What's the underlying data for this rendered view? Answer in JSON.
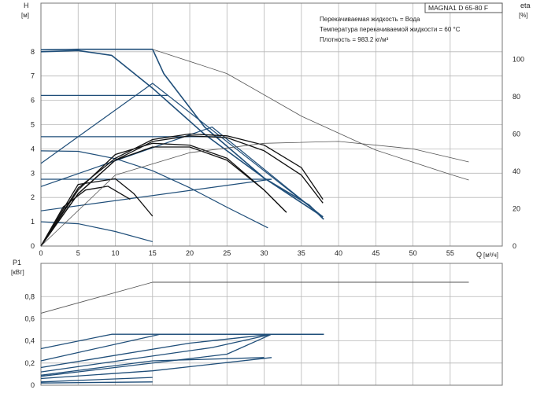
{
  "chart_data": [
    {
      "type": "line",
      "panel": "head",
      "title": "MAGNA1 D 65-80 F",
      "ylabel": "H",
      "yunit": "[м]",
      "xlabel": "Q",
      "xunit": "[м³/ч]",
      "y2label": "eta",
      "y2unit": "[%]",
      "xlim": [
        0,
        62
      ],
      "ylim": [
        0,
        10
      ],
      "y2lim": [
        0,
        130
      ],
      "x_ticks": [
        0,
        5,
        10,
        15,
        20,
        25,
        30,
        35,
        40,
        45,
        50,
        55
      ],
      "y_ticks": [
        0,
        1,
        2,
        3,
        4,
        5,
        6,
        7,
        8
      ],
      "y2_ticks": [
        0,
        20,
        40,
        60,
        80,
        100
      ],
      "grid": true,
      "info_lines": [
        "Перекачиваемая жидкость = Вода",
        "Температура перекачиваемой жидкости = 60 °C",
        "Плотность = 983.2 кг/м³"
      ],
      "colors": {
        "curve": "#1f4e79",
        "efficiency": "#111111",
        "twin": "#555555",
        "grid": "#b8b8b8"
      },
      "series": [
        {
          "role": "max-speed",
          "x": [
            0,
            5,
            9.5,
            15,
            22,
            30,
            36,
            38
          ],
          "y": [
            8.0,
            8.05,
            7.85,
            6.5,
            4.6,
            2.8,
            1.7,
            1.1
          ]
        },
        {
          "role": "max-speed",
          "x": [
            0,
            5,
            10,
            15,
            16.5,
            22,
            30,
            37.9
          ],
          "y": [
            8.08,
            8.1,
            8.1,
            8.1,
            7.1,
            4.9,
            2.8,
            1.2
          ]
        },
        {
          "role": "proportional-pressure",
          "x": [
            0,
            15,
            37.9
          ],
          "y": [
            3.4,
            6.7,
            1.2
          ]
        },
        {
          "role": "proportional-pressure",
          "x": [
            0,
            23,
            37.9
          ],
          "y": [
            2.45,
            4.9,
            1.2
          ]
        },
        {
          "role": "constant-pressure",
          "x": [
            0,
            17
          ],
          "y": [
            6.2,
            6.2
          ]
        },
        {
          "role": "constant-pressure",
          "x": [
            0,
            24
          ],
          "y": [
            4.5,
            4.5
          ]
        },
        {
          "role": "constant-pressure",
          "x": [
            0,
            31
          ],
          "y": [
            2.75,
            2.75
          ]
        },
        {
          "role": "constant-curve",
          "x": [
            0,
            5,
            10,
            15,
            20,
            25,
            30.5
          ],
          "y": [
            3.92,
            3.9,
            3.6,
            3.1,
            2.4,
            1.6,
            0.75
          ]
        },
        {
          "role": "constant-curve",
          "x": [
            0,
            5,
            10,
            15
          ],
          "y": [
            1.0,
            0.92,
            0.6,
            0.18
          ]
        },
        {
          "role": "proportional-pressure",
          "x": [
            0,
            31
          ],
          "y": [
            1.45,
            2.75
          ]
        },
        {
          "role": "twin-max-speed",
          "x": [
            15,
            25,
            35,
            45,
            55,
            57.5
          ],
          "y": [
            8.1,
            7.1,
            5.35,
            3.95,
            2.95,
            2.72
          ]
        }
      ],
      "efficiency_series": [
        {
          "x": [
            0,
            5,
            10,
            15,
            20,
            25,
            30,
            35,
            37.9
          ],
          "y": [
            0,
            31,
            47,
            57,
            60,
            59,
            54,
            42,
            25
          ]
        },
        {
          "x": [
            0,
            5,
            10,
            15,
            20,
            25,
            30,
            35,
            37.9
          ],
          "y": [
            0,
            28,
            46,
            56,
            59,
            58,
            51,
            38,
            23
          ]
        },
        {
          "x": [
            0,
            5,
            10,
            15,
            20,
            25,
            30,
            33
          ],
          "y": [
            0,
            30,
            49,
            55,
            54,
            47,
            30,
            18
          ]
        },
        {
          "x": [
            0,
            5,
            10,
            15,
            20,
            25,
            30,
            33
          ],
          "y": [
            0,
            28,
            46,
            53,
            53,
            46,
            30,
            18
          ]
        },
        {
          "x": [
            0,
            5,
            10,
            12.5,
            15
          ],
          "y": [
            0,
            33,
            36,
            28,
            16
          ]
        },
        {
          "x": [
            0,
            3,
            6,
            9,
            12
          ],
          "y": [
            0,
            21,
            30,
            32,
            25
          ]
        },
        {
          "x": [
            0,
            10,
            20,
            30,
            40,
            50,
            57.5
          ],
          "y": [
            0,
            38,
            50,
            55,
            56,
            52,
            45
          ]
        }
      ]
    },
    {
      "type": "line",
      "panel": "power",
      "ylabel": "P1",
      "yunit": "[кВт]",
      "xlim": [
        0,
        62
      ],
      "ylim": [
        0,
        1.1
      ],
      "y_ticks": [
        0,
        0.2,
        0.4,
        0.6,
        0.8
      ],
      "grid": true,
      "series": [
        {
          "role": "twin-max-speed",
          "x": [
            0,
            15
          ],
          "y": [
            0.65,
            0.93
          ]
        },
        {
          "role": "twin-max-speed",
          "x": [
            15,
            57.5
          ],
          "y": [
            0.93,
            0.93
          ]
        },
        {
          "role": "max-speed",
          "x": [
            0,
            9.5,
            38
          ],
          "y": [
            0.33,
            0.46,
            0.46
          ]
        },
        {
          "role": "curve",
          "x": [
            0,
            16,
            31,
            38
          ],
          "y": [
            0.22,
            0.46,
            0.46,
            0.46
          ]
        },
        {
          "role": "curve",
          "x": [
            0,
            20,
            31,
            38
          ],
          "y": [
            0.16,
            0.38,
            0.46,
            0.46
          ]
        },
        {
          "role": "curve",
          "x": [
            0,
            23,
            31,
            38
          ],
          "y": [
            0.12,
            0.34,
            0.46,
            0.46
          ]
        },
        {
          "role": "curve",
          "x": [
            0,
            25,
            31,
            38
          ],
          "y": [
            0.08,
            0.28,
            0.46,
            0.46
          ]
        },
        {
          "role": "curve",
          "x": [
            0,
            15,
            31
          ],
          "y": [
            0.06,
            0.13,
            0.25
          ]
        },
        {
          "role": "curve",
          "x": [
            0,
            15,
            30
          ],
          "y": [
            0.09,
            0.22,
            0.25
          ]
        },
        {
          "role": "curve",
          "x": [
            0,
            15
          ],
          "y": [
            0.03,
            0.07
          ]
        },
        {
          "role": "curve",
          "x": [
            0,
            15
          ],
          "y": [
            0.02,
            0.03
          ]
        }
      ]
    }
  ]
}
